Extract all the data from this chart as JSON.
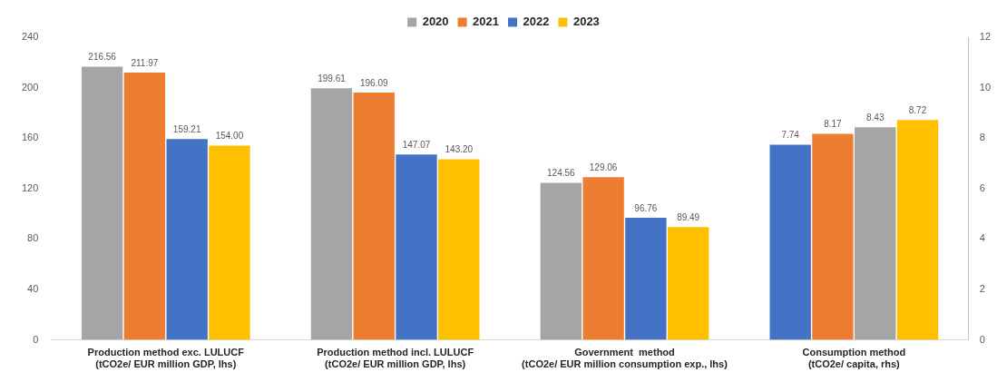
{
  "chart_data": {
    "type": "bar",
    "categories": [
      "Production method exc. LULUCF\n(tCO2e/ EUR million GDP, lhs)",
      "Production method incl. LULUCF\n(tCO2e/ EUR million GDP, lhs)",
      "Government  method\n(tCO2e/ EUR million consumption exp., lhs)",
      "Consumption method\n(tCO2e/ capita, rhs)"
    ],
    "series": [
      {
        "name": "2020",
        "color": "#a5a5a5",
        "values": [
          216.56,
          199.61,
          124.56,
          null
        ],
        "value_labels": [
          "216.56",
          "199.61",
          "124.56",
          null
        ]
      },
      {
        "name": "2021",
        "color": "#ed7d31",
        "values": [
          211.97,
          196.09,
          129.06,
          null
        ],
        "value_labels": [
          "211.97",
          "196.09",
          "129.06",
          null
        ]
      },
      {
        "name": "2022",
        "color": "#4472c4",
        "values": [
          159.21,
          147.07,
          96.76,
          null
        ],
        "value_labels": [
          "159.21",
          "147.07",
          "96.76",
          null
        ]
      },
      {
        "name": "2023",
        "color": "#ffc000",
        "values": [
          154.0,
          143.2,
          89.49,
          null
        ],
        "value_labels": [
          "154.00",
          "143.20",
          "89.49",
          null
        ]
      },
      {
        "color": "#4472c4",
        "axis": "y2",
        "values": [
          null,
          null,
          null,
          7.74
        ],
        "value_labels": [
          null,
          null,
          null,
          "7.74"
        ]
      },
      {
        "color": "#ed7d31",
        "axis": "y2",
        "values": [
          null,
          null,
          null,
          8.17
        ],
        "value_labels": [
          null,
          null,
          null,
          "8.17"
        ]
      },
      {
        "color": "#a5a5a5",
        "axis": "y2",
        "values": [
          null,
          null,
          null,
          8.43
        ],
        "value_labels": [
          null,
          null,
          null,
          "8.43"
        ]
      },
      {
        "color": "#ffc000",
        "axis": "y2",
        "values": [
          null,
          null,
          null,
          8.72
        ],
        "value_labels": [
          null,
          null,
          null,
          "8.72"
        ]
      }
    ],
    "ylim": [
      0,
      240
    ],
    "yticks": [
      0,
      40,
      80,
      120,
      160,
      200,
      240
    ],
    "y2lim": [
      0,
      12
    ],
    "y2ticks": [
      0,
      2,
      4,
      6,
      8,
      10,
      12
    ],
    "legend": "top",
    "grid": false
  }
}
